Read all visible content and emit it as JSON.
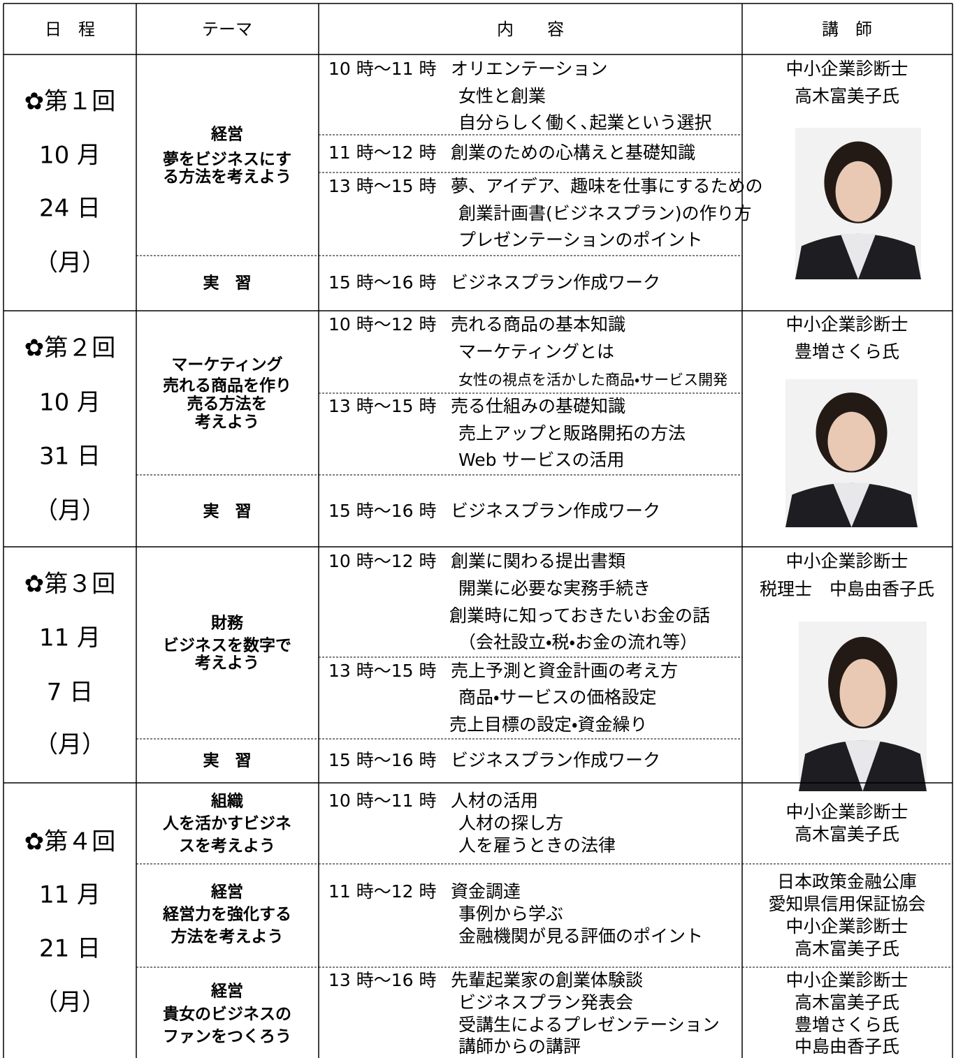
{
  "header": {
    "cells": [
      "日　程",
      "テーマ",
      "内　　容",
      "講　師"
    ]
  },
  "sessions": [
    {
      "date": [
        "✿第１回",
        "10 月",
        "24 日",
        "（月）"
      ],
      "themes": [
        {
          "color": "#ff0000",
          "lines": [
            "経営",
            "夢をビジネスにす",
            "る方法を考えよう"
          ]
        },
        {
          "color": "#7030a0",
          "lines": [
            "実　習"
          ]
        }
      ],
      "blocks": [
        {
          "time": "10 時～11 時",
          "lines": [
            "オリエンテーション",
            "女性と創業",
            "自分らしく働く､起業という選択"
          ]
        },
        {
          "time": "11 時～12 時",
          "lines": [
            "創業のための心構えと基礎知識"
          ]
        },
        {
          "time": "13 時～15 時",
          "lines": [
            "夢、アイデア、趣味を仕事にするための",
            "創業計画書(ビジネスプラン)の作り方",
            "プレゼンテーションのポイント"
          ]
        },
        {
          "time": "15 時～16 時",
          "lines": [
            "ビジネスプラン作成ワーク"
          ]
        }
      ],
      "instructors": [
        {
          "lines": [
            "中小企業診断士",
            "高木富美子氏"
          ]
        }
      ]
    },
    {
      "date": [
        "✿第２回",
        "10 月",
        "31 日",
        "（月）"
      ],
      "themes": [
        {
          "color": "#ff0000",
          "lines": [
            "マーケティング",
            "売れる商品を作り",
            "売る方法を",
            "考えよう"
          ]
        },
        {
          "color": "#7030a0",
          "lines": [
            "実　習"
          ]
        }
      ],
      "blocks": [
        {
          "time": "10 時～12 時",
          "lines": [
            "売れる商品の基本知識",
            "マーケティングとは",
            "女性の視点を活かした商品・サービス開発"
          ]
        },
        {
          "time": "13 時～15 時",
          "lines": [
            "売る仕組みの基礎知識",
            "売上アップと販路開拓の方法",
            "Web サービスの活用"
          ]
        },
        {
          "time": "15 時～16 時",
          "lines": [
            "ビジネスプラン作成ワーク"
          ]
        }
      ],
      "instructors": [
        {
          "lines": [
            "中小企業診断士",
            "豊増さくら氏"
          ]
        }
      ]
    },
    {
      "date": [
        "✿第３回",
        "11 月",
        "7 日",
        "（月）"
      ],
      "themes": [
        {
          "color": "#ff0000",
          "lines": [
            "財務",
            "ビジネスを数字で",
            "考えよう"
          ]
        },
        {
          "color": "#7030a0",
          "lines": [
            "実　習"
          ]
        }
      ],
      "blocks": [
        {
          "time": "10 時～12 時",
          "lines": [
            "創業に関わる提出書類",
            "開業に必要な実務手続き",
            "創業時に知っておきたいお金の話",
            "（会社設立・税・お金の流れ等）"
          ]
        },
        {
          "time": "13 時～15 時",
          "lines": [
            "売上予測と資金計画の考え方",
            "商品・サービスの価格設定",
            "売上目標の設定・資金繰り"
          ]
        },
        {
          "time": "15 時～16 時",
          "lines": [
            "ビジネスプラン作成ワーク"
          ]
        }
      ],
      "instructors": [
        {
          "lines": [
            "中小企業診断士",
            "税理士　中島由香子氏"
          ]
        }
      ]
    },
    {
      "date": [
        "✿第４回",
        "11 月",
        "21 日",
        "（月）"
      ],
      "themes": [
        {
          "color": "#ff0000",
          "lines": [
            "組織",
            "人を活かすビジネ",
            "スを考えよう"
          ]
        },
        {
          "color": "#ff0000",
          "lines": [
            "経営",
            "経営力を強化する",
            "方法を考えよう"
          ]
        },
        {
          "color": "#ff0000",
          "lines": [
            "経営",
            "貴女のビジネスの",
            "ファンをつくろう"
          ]
        }
      ],
      "blocks": [
        {
          "time": "10 時～11 時",
          "lines": [
            "人材の活用",
            "人材の探し方",
            "人を雇うときの法律"
          ]
        },
        {
          "time": "11 時～12 時",
          "lines": [
            "資金調達",
            "事例から学ぶ",
            "金融機関が見る評価のポイント"
          ]
        },
        {
          "time": "13 時～16 時",
          "lines": [
            "先輩起業家の創業体験談",
            "ビジネスプラン発表会",
            "受講生によるプレゼンテーション",
            "講師からの講評"
          ]
        }
      ],
      "instructors": [
        {
          "lines": [
            "中小企業診断士",
            "高木富美子氏"
          ]
        },
        {
          "lines": [
            "日本政策金融公庫",
            "愛知県信用保証協会",
            "中小企業診断士",
            "高木富美子氏"
          ]
        },
        {
          "lines": [
            "中小企業診断士",
            "高木富美子氏",
            "豊増さくら氏",
            "中島由香子氏"
          ]
        }
      ]
    }
  ]
}
